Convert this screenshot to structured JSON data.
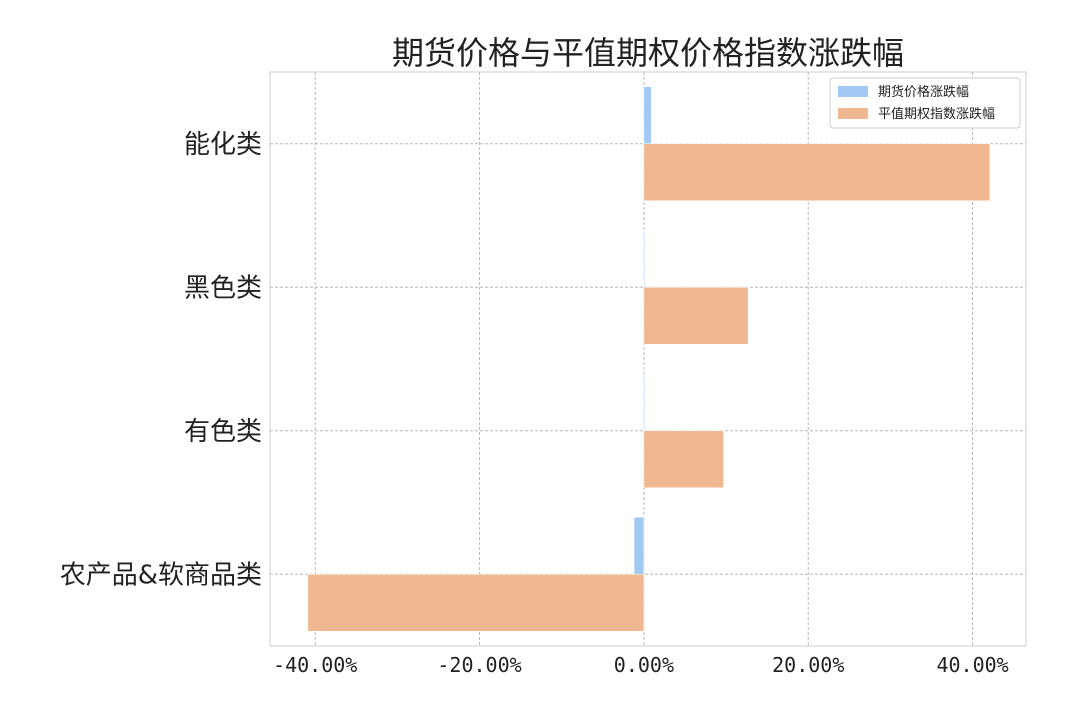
{
  "chart_data": {
    "type": "bar",
    "orientation": "horizontal",
    "title": "期货价格与平值期权价格指数涨跌幅",
    "categories": [
      "能化类",
      "黑色类",
      "有色类",
      "农产品&软商品类"
    ],
    "series": [
      {
        "name": "期货价格涨跌幅",
        "color": "#a1c9f4",
        "values": [
          0.9,
          0.1,
          0.1,
          -1.2
        ]
      },
      {
        "name": "平值期权指数涨跌幅",
        "color": "#f0b891",
        "values": [
          42.1,
          12.7,
          9.7,
          -40.9
        ]
      }
    ],
    "xlim": [
      -45.5,
      46.5
    ],
    "xticks": [
      -40,
      -20,
      0,
      20,
      40
    ],
    "xtick_labels": [
      "-40.00%",
      "-20.00%",
      "0.00%",
      "20.00%",
      "40.00%"
    ],
    "xlabel": "",
    "ylabel": "",
    "grid": true,
    "legend_position": "top-right"
  }
}
